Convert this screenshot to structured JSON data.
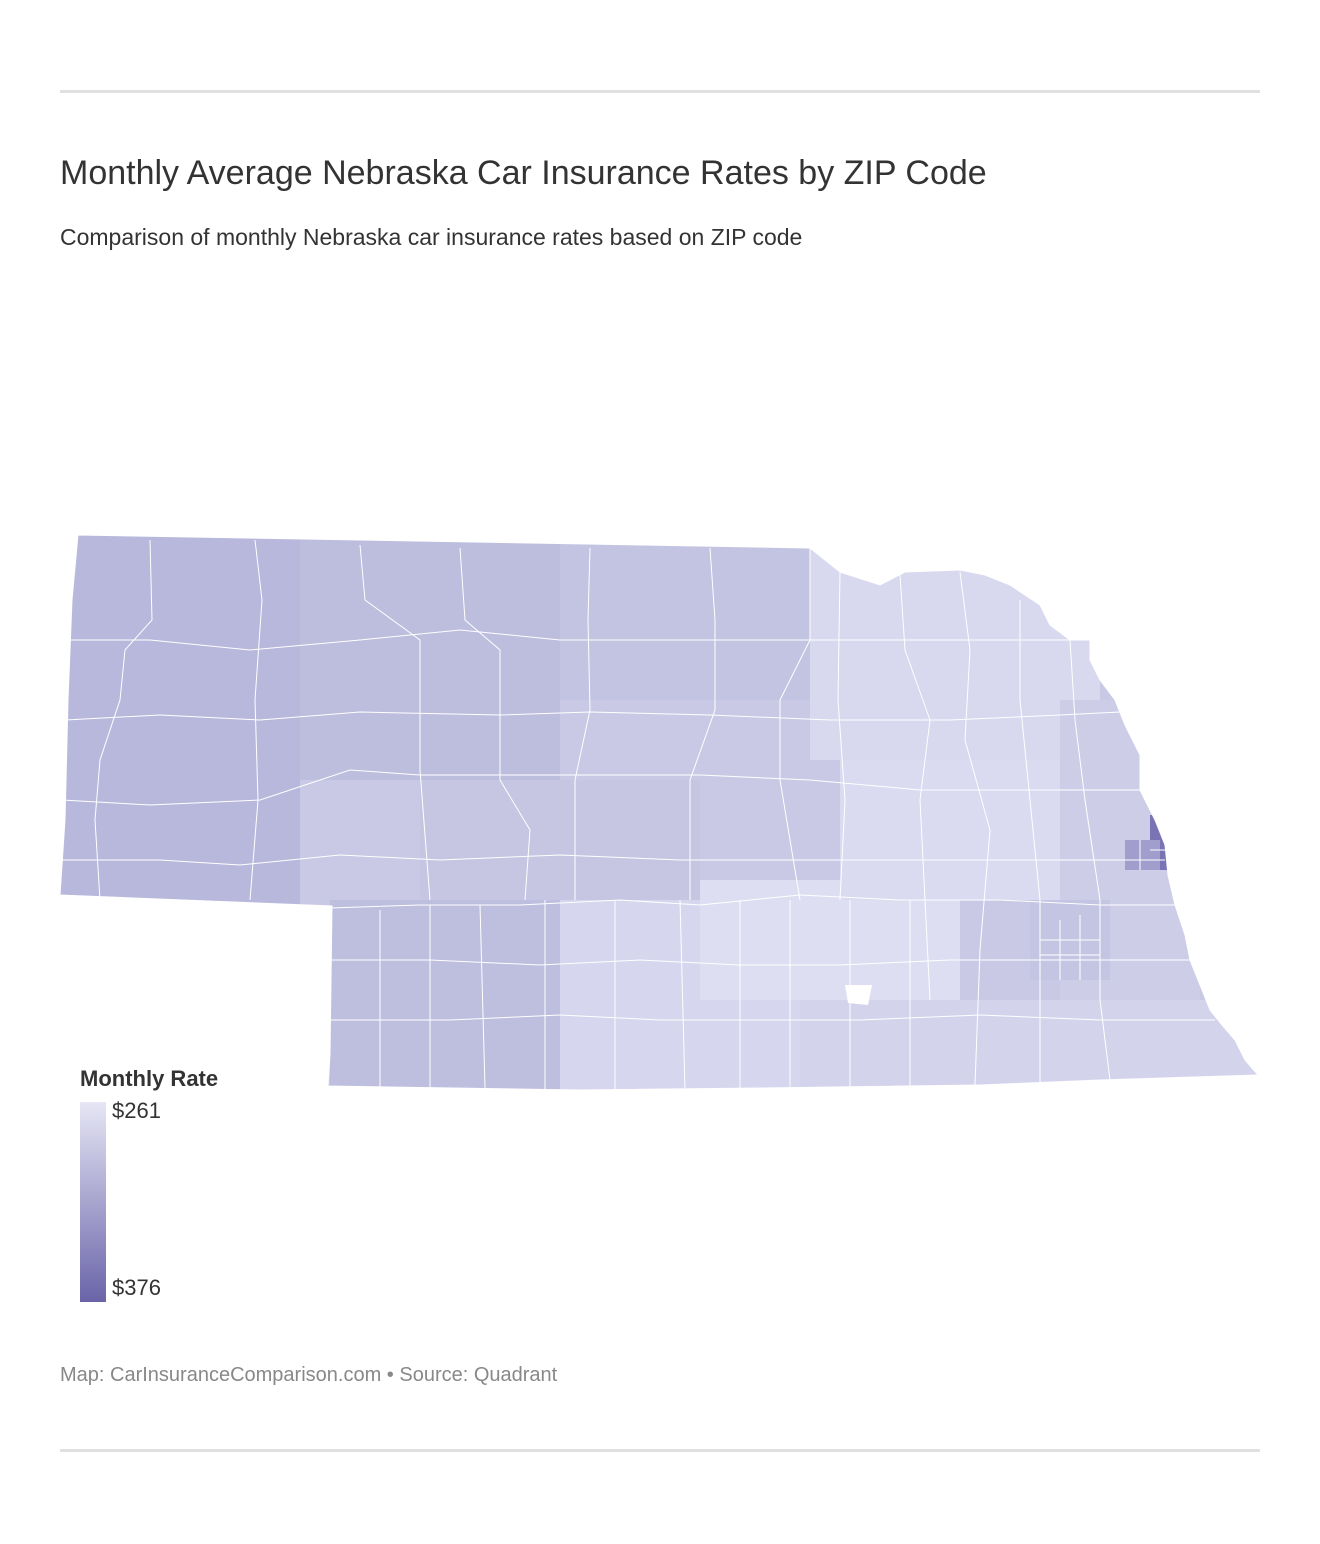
{
  "header": {
    "title": "Monthly Average Nebraska Car Insurance Rates by ZIP Code",
    "subtitle": "Comparison of monthly Nebraska car insurance rates based on ZIP code"
  },
  "legend": {
    "title": "Monthly Rate",
    "min_label": "$261",
    "max_label": "$376",
    "min_value": 261,
    "max_value": 376,
    "min_color": "#e6e6f5",
    "max_color": "#6a64a8"
  },
  "footer": {
    "credit": "Map: CarInsuranceComparison.com • Source: Quadrant"
  },
  "colors": {
    "rule": "#e0e0e0",
    "zip_border": "#ffffff"
  },
  "map": {
    "state": "Nebraska",
    "region_shading": [
      {
        "region": "panhandle-west",
        "rate_level": 0.5
      },
      {
        "region": "sandhills-north",
        "rate_level": 0.45
      },
      {
        "region": "north-central",
        "rate_level": 0.35
      },
      {
        "region": "central",
        "rate_level": 0.3
      },
      {
        "region": "south-central",
        "rate_level": 0.25
      },
      {
        "region": "northeast",
        "rate_level": 0.15
      },
      {
        "region": "east-central",
        "rate_level": 0.12
      },
      {
        "region": "southeast",
        "rate_level": 0.18
      },
      {
        "region": "lincoln-area",
        "rate_level": 0.3
      },
      {
        "region": "omaha-core",
        "rate_level": 0.95
      }
    ]
  }
}
